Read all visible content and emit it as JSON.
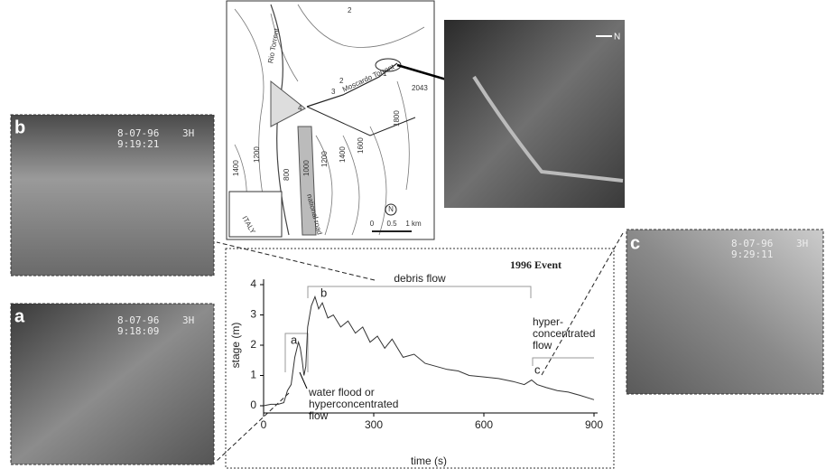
{
  "chart_data": {
    "type": "line",
    "title": "1996 Event",
    "x_label": "time (s)",
    "y_label": "stage (m)",
    "x": [
      0,
      20,
      40,
      55,
      65,
      75,
      85,
      95,
      100,
      105,
      110,
      115,
      120,
      130,
      140,
      150,
      160,
      175,
      190,
      210,
      230,
      250,
      270,
      290,
      310,
      330,
      350,
      380,
      410,
      440,
      470,
      500,
      530,
      560,
      600,
      640,
      680,
      710,
      730,
      745,
      770,
      800,
      830,
      860,
      900
    ],
    "series": [
      {
        "color": "#333333",
        "values": [
          0,
          0.05,
          0.05,
          0.1,
          0.5,
          0.7,
          1.6,
          2.1,
          1.9,
          1.5,
          1.0,
          1.3,
          2.6,
          3.3,
          3.6,
          3.2,
          3.4,
          2.9,
          3.0,
          2.6,
          2.8,
          2.4,
          2.6,
          2.1,
          2.3,
          1.9,
          2.2,
          1.6,
          1.7,
          1.4,
          1.3,
          1.2,
          1.15,
          1.0,
          0.95,
          0.9,
          0.8,
          0.7,
          0.85,
          0.7,
          0.6,
          0.5,
          0.45,
          0.35,
          0.2
        ]
      }
    ],
    "xlim": [
      0,
      900
    ],
    "xticks": [
      0,
      300,
      600,
      900
    ],
    "ylim": [
      0,
      4
    ],
    "yticks": [
      0,
      1,
      2,
      3,
      4
    ],
    "annotations": {
      "debris": "debris flow",
      "a": "a",
      "b": "b",
      "c": "c",
      "water": [
        "water flood or",
        "hyperconcentrated",
        "flow"
      ],
      "hyper": [
        "hyper-",
        "concentrated",
        "flow"
      ]
    }
  },
  "photos": [
    {
      "label": "b",
      "date": "8-07-96",
      "channel": "3H",
      "time": "9:19:21"
    },
    {
      "label": "a",
      "date": "8-07-96",
      "channel": "3H",
      "time": "9:18:09"
    },
    {
      "label": "c",
      "date": "8-07-96",
      "channel": "3H",
      "time": "9:29:11"
    }
  ],
  "map": {
    "labels": [
      "2",
      "2",
      "3",
      "4",
      "1",
      "Rio Torrent",
      "Moscardo Torrent",
      "2043",
      "1800",
      "1600",
      "1400",
      "1200",
      "1000",
      "800",
      "1400",
      "1200",
      "national road",
      "ITALY",
      "N",
      "0",
      "0.5",
      "1 km"
    ]
  },
  "aerial": {
    "north": "N"
  }
}
